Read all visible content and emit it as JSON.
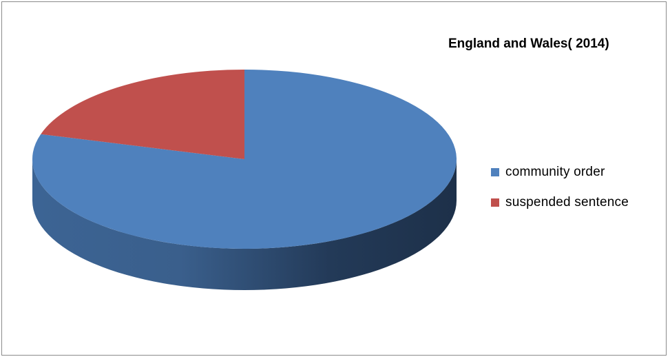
{
  "chart_data": {
    "type": "pie",
    "title": "England and Wales( 2014)",
    "three_d": true,
    "legend_placement": "right",
    "series": [
      {
        "name": "community order",
        "value": 79.5,
        "color": "#4f81bd"
      },
      {
        "name": "suspended sentence",
        "value": 20.5,
        "color": "#c0504d"
      }
    ]
  }
}
